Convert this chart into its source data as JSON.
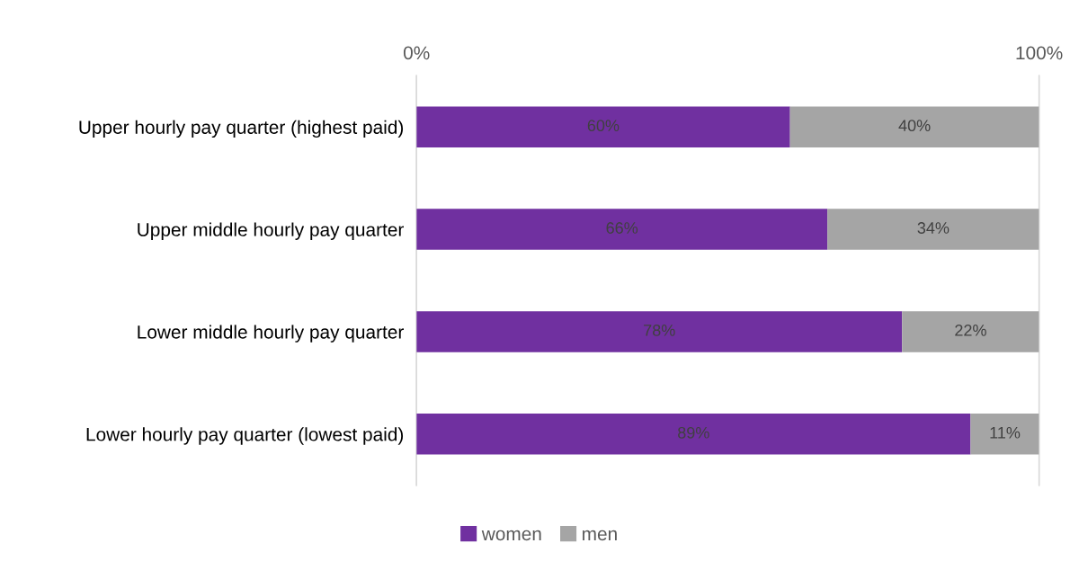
{
  "chart_data": {
    "type": "bar",
    "orientation": "horizontal",
    "stacked": true,
    "categories": [
      "Upper hourly pay quarter (highest paid)",
      "Upper middle hourly pay quarter",
      "Lower middle hourly pay quarter",
      "Lower hourly pay quarter (lowest paid)"
    ],
    "series": [
      {
        "name": "women",
        "color": "#7030a0",
        "values": [
          60,
          66,
          78,
          89
        ],
        "value_labels": [
          "60%",
          "66%",
          "78%",
          "89%"
        ]
      },
      {
        "name": "men",
        "color": "#a5a5a5",
        "values": [
          40,
          34,
          22,
          11
        ],
        "value_labels": [
          "40%",
          "34%",
          "22%",
          "11%"
        ]
      }
    ],
    "xlim": [
      0,
      100
    ],
    "xticks": [
      {
        "value": 0,
        "label": "0%"
      },
      {
        "value": 100,
        "label": "100%"
      }
    ],
    "grid": "x",
    "legend": "bottom"
  }
}
